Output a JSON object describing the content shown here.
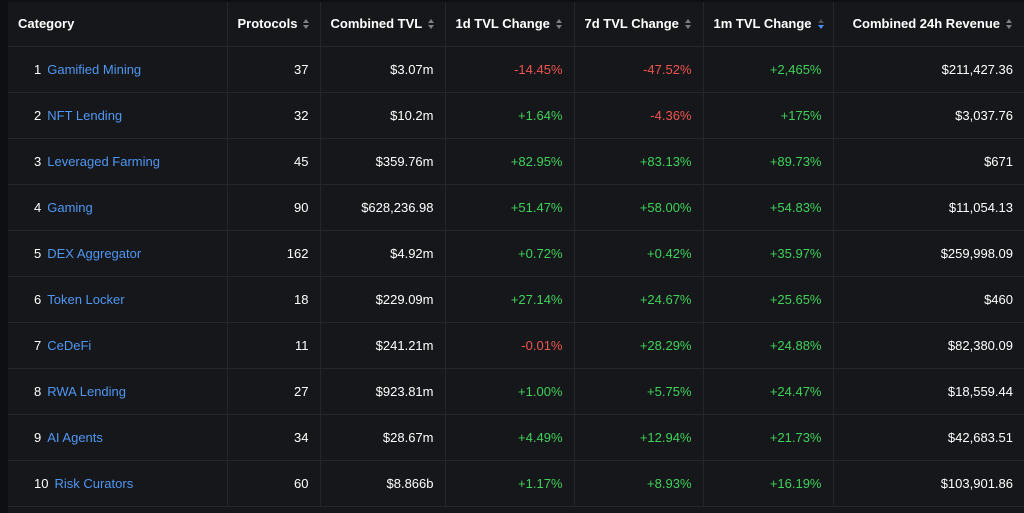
{
  "table": {
    "headers": [
      "Category",
      "Protocols",
      "Combined TVL",
      "1d TVL Change",
      "7d TVL Change",
      "1m TVL Change",
      "Combined 24h Revenue"
    ],
    "sort_icons": {
      "protocols": "sort-icon",
      "combined_tvl": "sort-icon",
      "tvl_1d": "sort-icon",
      "tvl_7d": "sort-icon",
      "tvl_1m": "sort-descending-icon",
      "revenue_24h": "sort-icon"
    },
    "colors": {
      "positive": "#3fd15a",
      "negative": "#f0544f",
      "link": "#4f97f3",
      "active_sort": "#4a8df0"
    },
    "rows": [
      {
        "rank": "1",
        "name": "Gamified Mining",
        "protocols": "37",
        "tvl": "$3.07m",
        "d1": "-14.45%",
        "d7": "-47.52%",
        "m1": "+2,465%",
        "rev": "$211,427.36"
      },
      {
        "rank": "2",
        "name": "NFT Lending",
        "protocols": "32",
        "tvl": "$10.2m",
        "d1": "+1.64%",
        "d7": "-4.36%",
        "m1": "+175%",
        "rev": "$3,037.76"
      },
      {
        "rank": "3",
        "name": "Leveraged Farming",
        "protocols": "45",
        "tvl": "$359.76m",
        "d1": "+82.95%",
        "d7": "+83.13%",
        "m1": "+89.73%",
        "rev": "$671"
      },
      {
        "rank": "4",
        "name": "Gaming",
        "protocols": "90",
        "tvl": "$628,236.98",
        "d1": "+51.47%",
        "d7": "+58.00%",
        "m1": "+54.83%",
        "rev": "$11,054.13"
      },
      {
        "rank": "5",
        "name": "DEX Aggregator",
        "protocols": "162",
        "tvl": "$4.92m",
        "d1": "+0.72%",
        "d7": "+0.42%",
        "m1": "+35.97%",
        "rev": "$259,998.09"
      },
      {
        "rank": "6",
        "name": "Token Locker",
        "protocols": "18",
        "tvl": "$229.09m",
        "d1": "+27.14%",
        "d7": "+24.67%",
        "m1": "+25.65%",
        "rev": "$460"
      },
      {
        "rank": "7",
        "name": "CeDeFi",
        "protocols": "11",
        "tvl": "$241.21m",
        "d1": "-0.01%",
        "d7": "+28.29%",
        "m1": "+24.88%",
        "rev": "$82,380.09"
      },
      {
        "rank": "8",
        "name": "RWA Lending",
        "protocols": "27",
        "tvl": "$923.81m",
        "d1": "+1.00%",
        "d7": "+5.75%",
        "m1": "+24.47%",
        "rev": "$18,559.44"
      },
      {
        "rank": "9",
        "name": "AI Agents",
        "protocols": "34",
        "tvl": "$28.67m",
        "d1": "+4.49%",
        "d7": "+12.94%",
        "m1": "+21.73%",
        "rev": "$42,683.51"
      },
      {
        "rank": "10",
        "name": "Risk Curators",
        "protocols": "60",
        "tvl": "$8.866b",
        "d1": "+1.17%",
        "d7": "+8.93%",
        "m1": "+16.19%",
        "rev": "$103,901.86"
      }
    ]
  }
}
